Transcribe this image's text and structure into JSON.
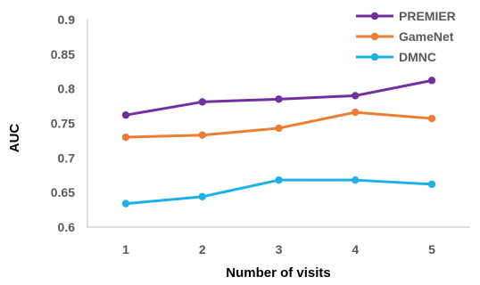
{
  "chart_data": {
    "type": "line",
    "title": "",
    "xlabel": "Number of visits",
    "ylabel": "AUC",
    "x": [
      1,
      2,
      3,
      4,
      5
    ],
    "x_tick_labels": [
      "1",
      "2",
      "3",
      "4",
      "5"
    ],
    "ylim": [
      0.6,
      0.9
    ],
    "y_ticks": [
      0.6,
      0.65,
      0.7,
      0.75,
      0.8,
      0.85,
      0.9
    ],
    "y_tick_labels": [
      "0.6",
      "0.65",
      "0.7",
      "0.75",
      "0.8",
      "0.85",
      "0.9"
    ],
    "grid": false,
    "legend_position": "top-right",
    "series": [
      {
        "name": "PREMIER",
        "color": "#7030a0",
        "values": [
          0.762,
          0.781,
          0.785,
          0.79,
          0.812
        ]
      },
      {
        "name": "GameNet",
        "color": "#ed7d31",
        "values": [
          0.73,
          0.733,
          0.743,
          0.766,
          0.757
        ]
      },
      {
        "name": "DMNC",
        "color": "#1fb1e6",
        "values": [
          0.634,
          0.644,
          0.668,
          0.668,
          0.662
        ]
      }
    ]
  }
}
